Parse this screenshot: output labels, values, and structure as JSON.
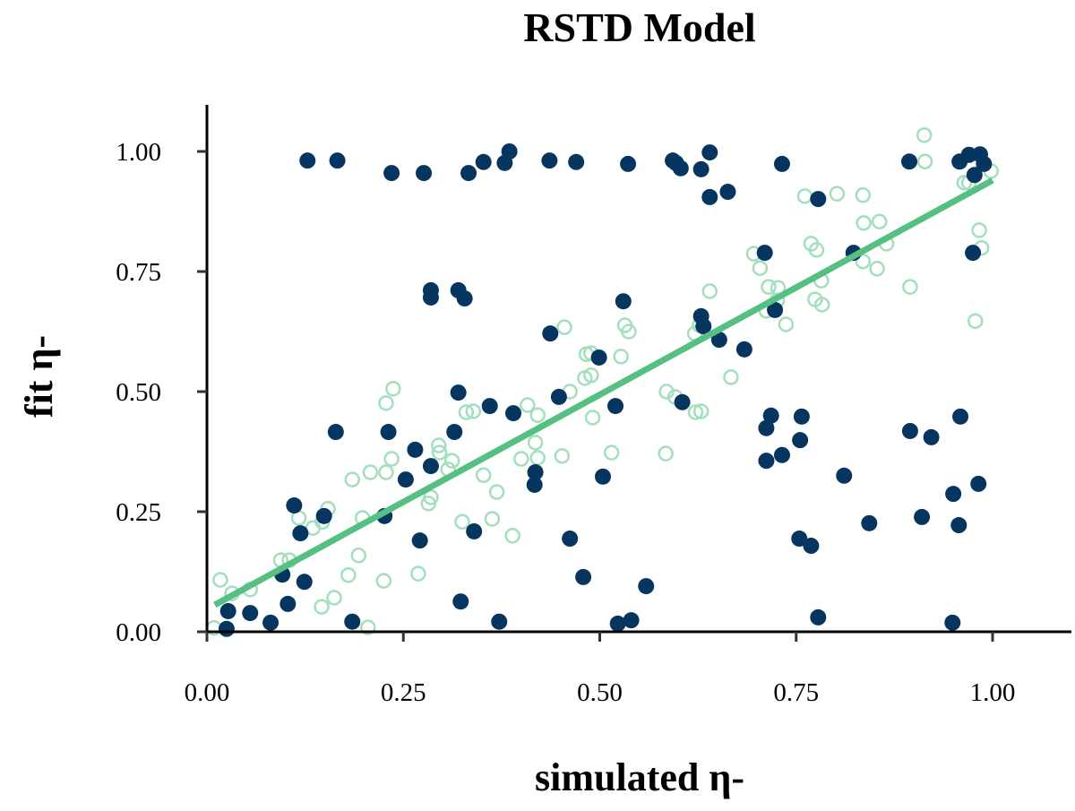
{
  "chart_data": {
    "type": "scatter",
    "title": "RSTD Model",
    "xlabel": "simulated η-",
    "ylabel": "fit η-",
    "xlim": [
      0.0,
      1.0
    ],
    "ylim": [
      0.0,
      1.0
    ],
    "xticks": [
      "0.00",
      "0.25",
      "0.50",
      "0.75",
      "1.00"
    ],
    "yticks": [
      "0.00",
      "0.25",
      "0.50",
      "0.75",
      "1.00"
    ],
    "grid": false,
    "colors": {
      "filled": "#06365f",
      "open": "#a3dfbd",
      "fit_line": "#56c083",
      "axis": "#000000"
    },
    "fit_line": {
      "x": [
        0.01,
        1.0
      ],
      "y": [
        0.056,
        0.94
      ]
    },
    "series": [
      {
        "marker": "filled",
        "points": [
          [
            0.128,
            0.981
          ],
          [
            0.166,
            0.981
          ],
          [
            0.235,
            0.955
          ],
          [
            0.276,
            0.955
          ],
          [
            0.333,
            0.955
          ],
          [
            0.352,
            0.978
          ],
          [
            0.379,
            0.976
          ],
          [
            0.385,
            1.0
          ],
          [
            0.436,
            0.981
          ],
          [
            0.47,
            0.978
          ],
          [
            0.536,
            0.974
          ],
          [
            0.593,
            0.981
          ],
          [
            0.597,
            0.976
          ],
          [
            0.603,
            0.965
          ],
          [
            0.629,
            0.963
          ],
          [
            0.64,
            0.998
          ],
          [
            0.64,
            0.905
          ],
          [
            0.663,
            0.916
          ],
          [
            0.732,
            0.974
          ],
          [
            0.778,
            0.901
          ],
          [
            0.894,
            0.979
          ],
          [
            0.958,
            0.979
          ],
          [
            0.97,
            0.993
          ],
          [
            0.984,
            0.994
          ],
          [
            0.989,
            0.974
          ],
          [
            0.977,
            0.951
          ],
          [
            0.975,
            0.789
          ],
          [
            0.71,
            0.789
          ],
          [
            0.823,
            0.789
          ],
          [
            0.285,
            0.711
          ],
          [
            0.285,
            0.696
          ],
          [
            0.32,
            0.711
          ],
          [
            0.328,
            0.694
          ],
          [
            0.53,
            0.688
          ],
          [
            0.629,
            0.657
          ],
          [
            0.632,
            0.636
          ],
          [
            0.652,
            0.608
          ],
          [
            0.684,
            0.588
          ],
          [
            0.723,
            0.67
          ],
          [
            0.499,
            0.571
          ],
          [
            0.437,
            0.621
          ],
          [
            0.605,
            0.478
          ],
          [
            0.52,
            0.47
          ],
          [
            0.712,
            0.424
          ],
          [
            0.718,
            0.45
          ],
          [
            0.712,
            0.356
          ],
          [
            0.732,
            0.368
          ],
          [
            0.757,
            0.448
          ],
          [
            0.755,
            0.399
          ],
          [
            0.811,
            0.325
          ],
          [
            0.895,
            0.418
          ],
          [
            0.922,
            0.405
          ],
          [
            0.959,
            0.448
          ],
          [
            0.95,
            0.287
          ],
          [
            0.982,
            0.308
          ],
          [
            0.957,
            0.222
          ],
          [
            0.843,
            0.226
          ],
          [
            0.91,
            0.239
          ],
          [
            0.754,
            0.194
          ],
          [
            0.769,
            0.179
          ],
          [
            0.778,
            0.03
          ],
          [
            0.949,
            0.019
          ],
          [
            0.32,
            0.498
          ],
          [
            0.36,
            0.47
          ],
          [
            0.39,
            0.455
          ],
          [
            0.448,
            0.489
          ],
          [
            0.164,
            0.416
          ],
          [
            0.231,
            0.416
          ],
          [
            0.315,
            0.416
          ],
          [
            0.265,
            0.379
          ],
          [
            0.285,
            0.345
          ],
          [
            0.253,
            0.317
          ],
          [
            0.418,
            0.332
          ],
          [
            0.417,
            0.306
          ],
          [
            0.504,
            0.323
          ],
          [
            0.111,
            0.263
          ],
          [
            0.149,
            0.241
          ],
          [
            0.226,
            0.241
          ],
          [
            0.119,
            0.205
          ],
          [
            0.271,
            0.19
          ],
          [
            0.34,
            0.209
          ],
          [
            0.462,
            0.194
          ],
          [
            0.096,
            0.119
          ],
          [
            0.124,
            0.104
          ],
          [
            0.479,
            0.114
          ],
          [
            0.103,
            0.058
          ],
          [
            0.323,
            0.063
          ],
          [
            0.027,
            0.043
          ],
          [
            0.055,
            0.039
          ],
          [
            0.081,
            0.019
          ],
          [
            0.185,
            0.021
          ],
          [
            0.372,
            0.021
          ],
          [
            0.025,
            0.006
          ],
          [
            0.523,
            0.017
          ],
          [
            0.54,
            0.024
          ],
          [
            0.559,
            0.095
          ]
        ]
      },
      {
        "marker": "open",
        "points": [
          [
            0.017,
            0.108
          ],
          [
            0.032,
            0.08
          ],
          [
            0.055,
            0.088
          ],
          [
            0.094,
            0.149
          ],
          [
            0.105,
            0.149
          ],
          [
            0.117,
            0.237
          ],
          [
            0.135,
            0.216
          ],
          [
            0.147,
            0.229
          ],
          [
            0.154,
            0.256
          ],
          [
            0.146,
            0.052
          ],
          [
            0.162,
            0.071
          ],
          [
            0.18,
            0.118
          ],
          [
            0.205,
            0.009
          ],
          [
            0.225,
            0.106
          ],
          [
            0.228,
            0.332
          ],
          [
            0.235,
            0.36
          ],
          [
            0.228,
            0.476
          ],
          [
            0.237,
            0.506
          ],
          [
            0.269,
            0.121
          ],
          [
            0.282,
            0.267
          ],
          [
            0.285,
            0.28
          ],
          [
            0.295,
            0.388
          ],
          [
            0.296,
            0.373
          ],
          [
            0.307,
            0.338
          ],
          [
            0.312,
            0.356
          ],
          [
            0.325,
            0.229
          ],
          [
            0.33,
            0.457
          ],
          [
            0.339,
            0.459
          ],
          [
            0.352,
            0.326
          ],
          [
            0.363,
            0.235
          ],
          [
            0.369,
            0.291
          ],
          [
            0.389,
            0.2
          ],
          [
            0.4,
            0.36
          ],
          [
            0.408,
            0.472
          ],
          [
            0.421,
            0.451
          ],
          [
            0.418,
            0.394
          ],
          [
            0.421,
            0.362
          ],
          [
            0.452,
            0.366
          ],
          [
            0.455,
            0.634
          ],
          [
            0.462,
            0.5
          ],
          [
            0.481,
            0.528
          ],
          [
            0.483,
            0.578
          ],
          [
            0.489,
            0.58
          ],
          [
            0.491,
            0.446
          ],
          [
            0.489,
            0.534
          ],
          [
            0.515,
            0.373
          ],
          [
            0.527,
            0.573
          ],
          [
            0.532,
            0.638
          ],
          [
            0.537,
            0.625
          ],
          [
            0.584,
            0.371
          ],
          [
            0.585,
            0.5
          ],
          [
            0.596,
            0.489
          ],
          [
            0.621,
            0.621
          ],
          [
            0.627,
            0.638
          ],
          [
            0.64,
            0.709
          ],
          [
            0.629,
            0.459
          ],
          [
            0.622,
            0.457
          ],
          [
            0.667,
            0.53
          ],
          [
            0.696,
            0.787
          ],
          [
            0.704,
            0.757
          ],
          [
            0.712,
            0.668
          ],
          [
            0.715,
            0.718
          ],
          [
            0.727,
            0.716
          ],
          [
            0.726,
            0.69
          ],
          [
            0.737,
            0.64
          ],
          [
            0.761,
            0.907
          ],
          [
            0.769,
            0.808
          ],
          [
            0.776,
            0.795
          ],
          [
            0.774,
            0.692
          ],
          [
            0.783,
            0.681
          ],
          [
            0.782,
            0.731
          ],
          [
            0.802,
            0.912
          ],
          [
            0.835,
            0.909
          ],
          [
            0.836,
            0.851
          ],
          [
            0.835,
            0.771
          ],
          [
            0.853,
            0.756
          ],
          [
            0.856,
            0.854
          ],
          [
            0.865,
            0.808
          ],
          [
            0.895,
            0.718
          ],
          [
            0.913,
            1.034
          ],
          [
            0.914,
            0.979
          ],
          [
            0.964,
            0.935
          ],
          [
            0.97,
            0.935
          ],
          [
            0.978,
            0.647
          ],
          [
            0.983,
            0.836
          ],
          [
            0.986,
            0.799
          ],
          [
            0.998,
            0.959
          ],
          [
            0.009,
            0.008
          ],
          [
            0.198,
            0.237
          ],
          [
            0.185,
            0.317
          ],
          [
            0.208,
            0.332
          ],
          [
            0.193,
            0.159
          ]
        ]
      }
    ]
  }
}
